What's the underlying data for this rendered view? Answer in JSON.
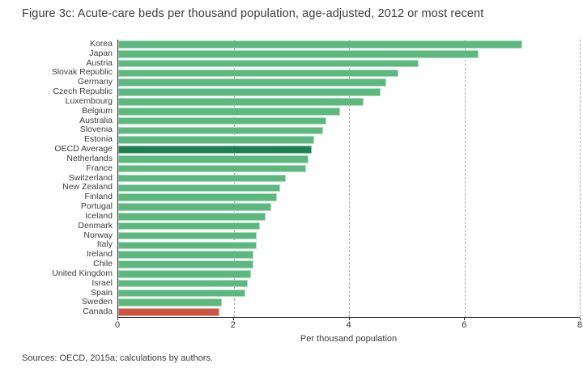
{
  "title": "Figure 3c: Acute-care beds per thousand population, age-adjusted, 2012 or most recent",
  "footer": "Sources: OECD, 2015a; calculations by authors.",
  "colors": {
    "bar_default": "#5cb87f",
    "bar_highlight_average": "#1e8050",
    "bar_highlight_canada": "#cd5342",
    "gridline": "#ababab",
    "axis_line": "#262626",
    "text": "#3c3c3c"
  },
  "chart_data": {
    "type": "bar",
    "orientation": "horizontal",
    "title": "Figure 3c: Acute-care beds per thousand population, age-adjusted, 2012 or most recent",
    "xlabel": "Per thousand population",
    "ylabel": "",
    "xlim": [
      0,
      8
    ],
    "xticks": [
      0,
      2,
      4,
      6,
      8
    ],
    "grid": "vertical dashed gridlines at xticks, drawn behind bars",
    "legend": "none",
    "palette": {
      "green": "#5cb87f",
      "dark_green": "#1e8050",
      "red": "#cd5342"
    },
    "series": [
      {
        "label": "Korea",
        "value": 7.0,
        "color": "green"
      },
      {
        "label": "Japan",
        "value": 6.25,
        "color": "green"
      },
      {
        "label": "Austria",
        "value": 5.2,
        "color": "green"
      },
      {
        "label": "Slovak Republic",
        "value": 4.85,
        "color": "green"
      },
      {
        "label": "Germany",
        "value": 4.65,
        "color": "green"
      },
      {
        "label": "Czech Republic",
        "value": 4.55,
        "color": "green"
      },
      {
        "label": "Luxembourg",
        "value": 4.25,
        "color": "green"
      },
      {
        "label": "Belgium",
        "value": 3.85,
        "color": "green"
      },
      {
        "label": "Australia",
        "value": 3.6,
        "color": "green"
      },
      {
        "label": "Slovenia",
        "value": 3.55,
        "color": "green"
      },
      {
        "label": "Estonia",
        "value": 3.4,
        "color": "green"
      },
      {
        "label": "OECD Average",
        "value": 3.35,
        "color": "dark_green"
      },
      {
        "label": "Netherlands",
        "value": 3.3,
        "color": "green"
      },
      {
        "label": "France",
        "value": 3.25,
        "color": "green"
      },
      {
        "label": "Switzerland",
        "value": 2.9,
        "color": "green"
      },
      {
        "label": "New Zealand",
        "value": 2.8,
        "color": "green"
      },
      {
        "label": "Finland",
        "value": 2.75,
        "color": "green"
      },
      {
        "label": "Portugal",
        "value": 2.65,
        "color": "green"
      },
      {
        "label": "Iceland",
        "value": 2.55,
        "color": "green"
      },
      {
        "label": "Denmark",
        "value": 2.45,
        "color": "green"
      },
      {
        "label": "Norway",
        "value": 2.4,
        "color": "green"
      },
      {
        "label": "Italy",
        "value": 2.4,
        "color": "green"
      },
      {
        "label": "Ireland",
        "value": 2.35,
        "color": "green"
      },
      {
        "label": "Chile",
        "value": 2.35,
        "color": "green"
      },
      {
        "label": "United Kingdom",
        "value": 2.3,
        "color": "green"
      },
      {
        "label": "Israel",
        "value": 2.25,
        "color": "green"
      },
      {
        "label": "Spain",
        "value": 2.2,
        "color": "green"
      },
      {
        "label": "Sweden",
        "value": 1.8,
        "color": "green"
      },
      {
        "label": "Canada",
        "value": 1.75,
        "color": "red"
      }
    ]
  }
}
